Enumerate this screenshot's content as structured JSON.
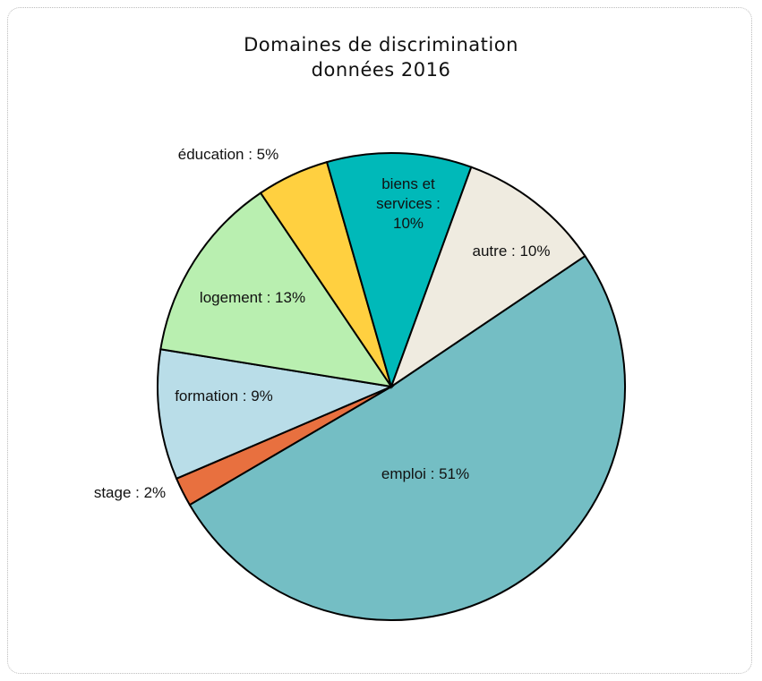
{
  "chart_data": {
    "type": "pie",
    "title": "Domaines de discrimination",
    "subtitle": "données 2016",
    "categories": [
      "emploi : 51%",
      "stage : 2%",
      "formation  : 9%",
      "logement : 13%",
      "éducation  : 5%",
      "biens et services : 10%",
      "autre  : 10%"
    ],
    "values": [
      51,
      2,
      9,
      13,
      5,
      10,
      10
    ],
    "colors": [
      "#74bec4",
      "#e8703f",
      "#b9dde8",
      "#b9efb0",
      "#ffd040",
      "#00b9b9",
      "#efebe0"
    ]
  }
}
